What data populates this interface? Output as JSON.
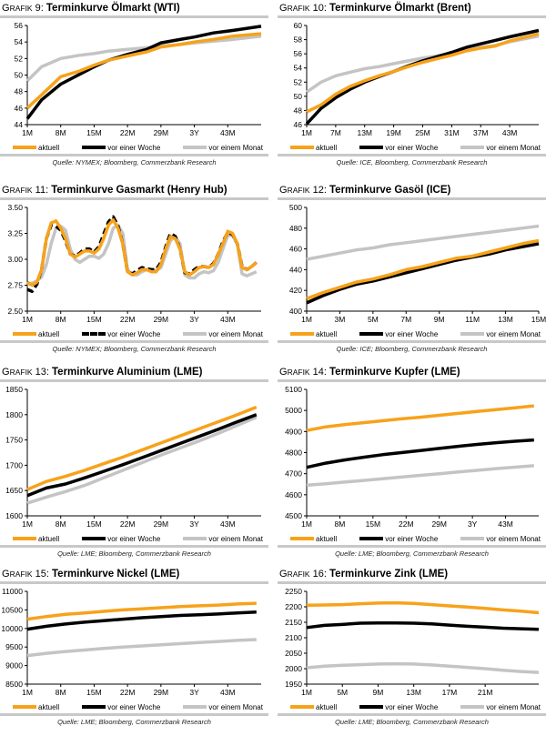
{
  "legend": {
    "current": "aktuell",
    "week": "vor einer Woche",
    "month": "vor einem Monat"
  },
  "colors": {
    "current": "#f7a21b",
    "week": "#000000",
    "month": "#c4c4c4"
  },
  "chart_data": [
    {
      "type": "line",
      "prefix": "Grafik 9:",
      "title": "Terminkurve Ölmarkt (WTI)",
      "source": "Quelle: NYMEX; Bloomberg, Commerzbank Research",
      "ylim": [
        44,
        56
      ],
      "ystep": 2,
      "ydec": 0,
      "xlim": [
        1,
        50
      ],
      "xticks": [
        [
          1,
          "1M"
        ],
        [
          8,
          "8M"
        ],
        [
          15,
          "15M"
        ],
        [
          22,
          "22M"
        ],
        [
          29,
          "29M"
        ],
        [
          36,
          "3Y"
        ],
        [
          43,
          "43M"
        ]
      ],
      "x": [
        1,
        4,
        8,
        12,
        15,
        18,
        22,
        26,
        29,
        33,
        36,
        40,
        44,
        50
      ],
      "series": [
        {
          "name": "aktuell",
          "values": [
            46,
            47.6,
            49.8,
            50.5,
            51.2,
            51.8,
            52.3,
            52.8,
            53.4,
            53.7,
            54.0,
            54.3,
            54.7,
            55.0
          ]
        },
        {
          "name": "vor einer Woche",
          "values": [
            44.7,
            47,
            48.9,
            50.1,
            51,
            51.8,
            52.5,
            53.1,
            53.9,
            54.3,
            54.6,
            55.1,
            55.4,
            55.9
          ]
        },
        {
          "name": "vor einem Monat",
          "values": [
            49.3,
            51,
            52,
            52.4,
            52.6,
            52.9,
            53.1,
            53.3,
            53.5,
            53.7,
            53.9,
            54.1,
            54.3,
            54.7
          ]
        }
      ]
    },
    {
      "type": "line",
      "prefix": "Grafik 10:",
      "title": "Terminkurve Ölmarkt (Brent)",
      "source": "Quelle: ICE, Bloomberg, Commerzbank Research",
      "ylim": [
        46,
        60
      ],
      "ystep": 2,
      "ydec": 0,
      "xlim": [
        1,
        49
      ],
      "xticks": [
        [
          1,
          "1M"
        ],
        [
          7,
          "7M"
        ],
        [
          13,
          "13M"
        ],
        [
          19,
          "19M"
        ],
        [
          25,
          "25M"
        ],
        [
          31,
          "31M"
        ],
        [
          37,
          "37M"
        ],
        [
          43,
          "43M"
        ]
      ],
      "x": [
        1,
        4,
        7,
        10,
        13,
        16,
        19,
        22,
        25,
        28,
        31,
        34,
        37,
        40,
        43,
        49
      ],
      "series": [
        {
          "name": "aktuell",
          "values": [
            47.8,
            48.8,
            50.3,
            51.4,
            52.2,
            52.9,
            53.5,
            54.2,
            54.8,
            55.3,
            55.8,
            56.4,
            56.8,
            57.1,
            57.8,
            58.8
          ]
        },
        {
          "name": "vor einer Woche",
          "values": [
            46.1,
            48.3,
            49.8,
            51,
            52,
            52.8,
            53.5,
            54.3,
            55,
            55.6,
            56.2,
            56.9,
            57.4,
            57.9,
            58.4,
            59.3
          ]
        },
        {
          "name": "vor einem Monat",
          "values": [
            50.6,
            52,
            52.9,
            53.4,
            53.9,
            54.2,
            54.6,
            55,
            55.4,
            55.7,
            56.1,
            56.5,
            56.9,
            57.2,
            57.7,
            58.5
          ]
        }
      ]
    },
    {
      "type": "line",
      "prefix": "Grafik 11:",
      "title": "Terminkurve Gasmarkt (Henry Hub)",
      "source": "Quelle: NYMEX; Bloomberg, Commerzbank Research",
      "ylim": [
        2.5,
        3.5
      ],
      "ystep": 0.25,
      "ydec": 2,
      "xlim": [
        1,
        50
      ],
      "dashedWeek": true,
      "xticks": [
        [
          1,
          "1M"
        ],
        [
          8,
          "8M"
        ],
        [
          15,
          "15M"
        ],
        [
          22,
          "22M"
        ],
        [
          29,
          "29M"
        ],
        [
          36,
          "3Y"
        ],
        [
          43,
          "43M"
        ]
      ],
      "x": [
        1,
        2,
        3,
        4,
        5,
        6,
        7,
        8,
        9,
        10,
        11,
        12,
        13,
        14,
        15,
        16,
        17,
        18,
        19,
        20,
        21,
        22,
        23,
        24,
        25,
        26,
        27,
        28,
        29,
        30,
        31,
        32,
        33,
        34,
        35,
        36,
        37,
        38,
        39,
        40,
        41,
        42,
        43,
        44,
        45,
        46,
        47,
        48,
        49
      ],
      "series": [
        {
          "name": "aktuell",
          "values": [
            2.78,
            2.75,
            2.78,
            2.9,
            3.2,
            3.35,
            3.37,
            3.3,
            3.2,
            3.05,
            3.02,
            3.05,
            3.08,
            3.08,
            3.06,
            3.1,
            3.2,
            3.33,
            3.38,
            3.3,
            3.15,
            2.88,
            2.85,
            2.87,
            2.9,
            2.9,
            2.88,
            2.88,
            2.95,
            3.1,
            3.22,
            3.2,
            3.1,
            2.88,
            2.85,
            2.88,
            2.92,
            2.93,
            2.92,
            2.95,
            3.05,
            3.15,
            3.27,
            3.25,
            3.15,
            2.92,
            2.9,
            2.93,
            2.97
          ]
        },
        {
          "name": "vor einer Woche",
          "values": [
            2.71,
            2.69,
            2.76,
            2.9,
            3.2,
            3.33,
            3.32,
            3.28,
            3.18,
            3.05,
            3.03,
            3.06,
            3.1,
            3.1,
            3.07,
            3.12,
            3.24,
            3.36,
            3.41,
            3.32,
            3.15,
            2.88,
            2.86,
            2.89,
            2.92,
            2.91,
            2.9,
            2.9,
            2.97,
            3.12,
            3.25,
            3.22,
            3.1,
            2.87,
            2.86,
            2.9,
            2.93,
            2.93,
            2.92,
            2.96,
            3.05,
            3.17,
            3.26,
            3.24,
            3.15,
            2.93,
            2.9,
            2.93,
            2.97
          ]
        },
        {
          "name": "vor einem Monat",
          "values": [
            2.76,
            2.77,
            2.79,
            2.83,
            2.95,
            3.15,
            3.3,
            3.32,
            3.28,
            3.1,
            3.0,
            2.97,
            3.0,
            3.03,
            3.03,
            3.01,
            3.05,
            3.15,
            3.3,
            3.33,
            3.25,
            2.9,
            2.85,
            2.85,
            2.88,
            2.9,
            2.9,
            2.89,
            2.92,
            3.05,
            3.18,
            3.22,
            3.15,
            2.85,
            2.82,
            2.82,
            2.86,
            2.88,
            2.87,
            2.89,
            2.97,
            3.1,
            3.23,
            3.23,
            3.15,
            2.86,
            2.84,
            2.86,
            2.88
          ]
        }
      ]
    },
    {
      "type": "line",
      "prefix": "Grafik 12:",
      "title": "Terminkurve Gasöl (ICE)",
      "source": "Quelle: ICE; Bloomberg, Commerzbank Research",
      "ylim": [
        400,
        500
      ],
      "ystep": 20,
      "ydec": 0,
      "xlim": [
        1,
        15
      ],
      "xticks": [
        [
          1,
          "1M"
        ],
        [
          3,
          "3M"
        ],
        [
          5,
          "5M"
        ],
        [
          7,
          "7M"
        ],
        [
          9,
          "9M"
        ],
        [
          11,
          "11M"
        ],
        [
          13,
          "13M"
        ],
        [
          15,
          "15M"
        ]
      ],
      "x": [
        1,
        2,
        3,
        4,
        5,
        6,
        7,
        8,
        9,
        10,
        11,
        12,
        13,
        14,
        15
      ],
      "series": [
        {
          "name": "aktuell",
          "values": [
            412,
            418,
            423,
            428,
            431,
            435,
            440,
            443,
            447,
            451,
            453,
            457,
            461,
            465,
            468
          ]
        },
        {
          "name": "vor einer Woche",
          "values": [
            408,
            415,
            421,
            426,
            429,
            433,
            437,
            441,
            445,
            449,
            452,
            455,
            459,
            462,
            465
          ]
        },
        {
          "name": "vor einem Monat",
          "values": [
            450,
            453,
            456,
            459,
            461,
            464,
            466,
            468,
            470,
            472,
            474,
            476,
            478,
            480,
            482
          ]
        }
      ]
    },
    {
      "type": "line",
      "prefix": "Grafik 13:",
      "title": "Terminkurve Aluminium (LME)",
      "source": "Quelle: LME; Bloomberg, Commerzbank Research",
      "ylim": [
        1600,
        1850
      ],
      "ystep": 50,
      "ydec": 0,
      "xlim": [
        1,
        50
      ],
      "xticks": [
        [
          1,
          "1M"
        ],
        [
          8,
          "8M"
        ],
        [
          15,
          "15M"
        ],
        [
          22,
          "22M"
        ],
        [
          29,
          "29M"
        ],
        [
          36,
          "3Y"
        ],
        [
          43,
          "43M"
        ]
      ],
      "x": [
        1,
        5,
        9,
        13,
        17,
        21,
        25,
        29,
        33,
        37,
        41,
        45,
        49
      ],
      "series": [
        {
          "name": "aktuell",
          "values": [
            1652,
            1668,
            1678,
            1690,
            1703,
            1716,
            1730,
            1744,
            1758,
            1772,
            1786,
            1800,
            1815
          ]
        },
        {
          "name": "vor einer Woche",
          "values": [
            1640,
            1655,
            1663,
            1675,
            1688,
            1701,
            1715,
            1729,
            1743,
            1757,
            1771,
            1786,
            1800
          ]
        },
        {
          "name": "vor einem Monat",
          "values": [
            1625,
            1637,
            1648,
            1660,
            1675,
            1690,
            1705,
            1720,
            1734,
            1748,
            1763,
            1779,
            1795
          ]
        }
      ]
    },
    {
      "type": "line",
      "prefix": "Grafik 14:",
      "title": "Terminkurve Kupfer (LME)",
      "source": "Quelle: LME; Bloomberg, Commerzbank Research",
      "ylim": [
        4500,
        5100
      ],
      "ystep": 100,
      "ydec": 0,
      "xlim": [
        1,
        50
      ],
      "xticks": [
        [
          1,
          "1M"
        ],
        [
          8,
          "8M"
        ],
        [
          15,
          "15M"
        ],
        [
          22,
          "22M"
        ],
        [
          29,
          "29M"
        ],
        [
          36,
          "3Y"
        ],
        [
          43,
          "43M"
        ]
      ],
      "x": [
        1,
        5,
        9,
        13,
        17,
        21,
        25,
        29,
        33,
        37,
        41,
        45,
        49
      ],
      "series": [
        {
          "name": "aktuell",
          "values": [
            4905,
            4922,
            4933,
            4942,
            4951,
            4960,
            4968,
            4977,
            4986,
            4995,
            5004,
            5013,
            5022
          ]
        },
        {
          "name": "vor einer Woche",
          "values": [
            4730,
            4750,
            4765,
            4778,
            4790,
            4800,
            4810,
            4820,
            4830,
            4839,
            4847,
            4854,
            4860
          ]
        },
        {
          "name": "vor einem Monat",
          "values": [
            4645,
            4652,
            4660,
            4668,
            4676,
            4684,
            4692,
            4700,
            4708,
            4716,
            4724,
            4731,
            4738
          ]
        }
      ]
    },
    {
      "type": "line",
      "prefix": "Grafik 15:",
      "title": "Terminkurve Nickel (LME)",
      "source": "Quelle: LME; Bloomberg, Commerzbank Research",
      "ylim": [
        8500,
        11000
      ],
      "ystep": 500,
      "ydec": 0,
      "xlim": [
        1,
        50
      ],
      "xticks": [
        [
          1,
          "1M"
        ],
        [
          8,
          "8M"
        ],
        [
          15,
          "15M"
        ],
        [
          22,
          "22M"
        ],
        [
          29,
          "29M"
        ],
        [
          36,
          "3Y"
        ],
        [
          43,
          "43M"
        ]
      ],
      "x": [
        1,
        5,
        9,
        13,
        17,
        21,
        25,
        29,
        33,
        37,
        41,
        45,
        49
      ],
      "series": [
        {
          "name": "aktuell",
          "values": [
            10250,
            10320,
            10380,
            10420,
            10460,
            10500,
            10530,
            10560,
            10590,
            10610,
            10630,
            10660,
            10680
          ]
        },
        {
          "name": "vor einer Woche",
          "values": [
            9980,
            10060,
            10120,
            10170,
            10210,
            10250,
            10290,
            10320,
            10350,
            10370,
            10390,
            10420,
            10440
          ]
        },
        {
          "name": "vor einem Monat",
          "values": [
            9270,
            9330,
            9380,
            9420,
            9460,
            9500,
            9530,
            9560,
            9590,
            9620,
            9650,
            9680,
            9700
          ]
        }
      ]
    },
    {
      "type": "line",
      "prefix": "Grafik 16:",
      "title": "Terminkurve Zink (LME)",
      "source": "Quelle: LME; Bloomberg, Commerzbank Research",
      "ylim": [
        1950,
        2250
      ],
      "ystep": 50,
      "ydec": 0,
      "xlim": [
        1,
        27
      ],
      "xticks": [
        [
          1,
          "1M"
        ],
        [
          5,
          "5M"
        ],
        [
          9,
          "9M"
        ],
        [
          13,
          "13M"
        ],
        [
          17,
          "17M"
        ],
        [
          21,
          "21M"
        ]
      ],
      "x": [
        1,
        3,
        5,
        7,
        9,
        11,
        13,
        15,
        17,
        19,
        21,
        23,
        25,
        27
      ],
      "series": [
        {
          "name": "aktuell",
          "values": [
            2205,
            2206,
            2207,
            2210,
            2212,
            2213,
            2211,
            2207,
            2203,
            2199,
            2195,
            2190,
            2186,
            2181
          ]
        },
        {
          "name": "vor einer Woche",
          "values": [
            2133,
            2140,
            2143,
            2147,
            2148,
            2148,
            2147,
            2145,
            2141,
            2137,
            2134,
            2131,
            2129,
            2127
          ]
        },
        {
          "name": "vor einem Monat",
          "values": [
            2003,
            2008,
            2011,
            2013,
            2015,
            2016,
            2015,
            2012,
            2008,
            2004,
            2000,
            1995,
            1991,
            1988
          ]
        }
      ]
    }
  ]
}
